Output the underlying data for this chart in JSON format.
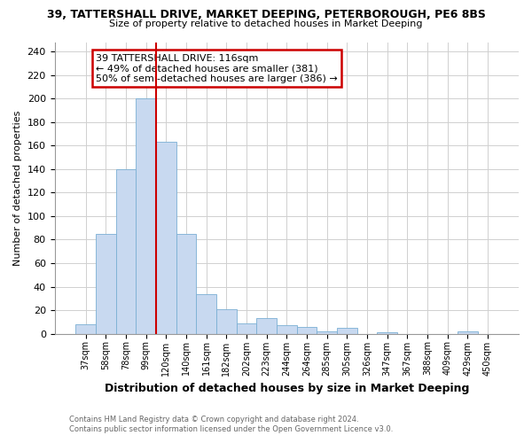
{
  "title1": "39, TATTERSHALL DRIVE, MARKET DEEPING, PETERBOROUGH, PE6 8BS",
  "title2": "Size of property relative to detached houses in Market Deeping",
  "xlabel": "Distribution of detached houses by size in Market Deeping",
  "ylabel": "Number of detached properties",
  "bar_labels": [
    "37sqm",
    "58sqm",
    "78sqm",
    "99sqm",
    "120sqm",
    "140sqm",
    "161sqm",
    "182sqm",
    "202sqm",
    "223sqm",
    "244sqm",
    "264sqm",
    "285sqm",
    "305sqm",
    "326sqm",
    "347sqm",
    "367sqm",
    "388sqm",
    "409sqm",
    "429sqm",
    "450sqm"
  ],
  "bar_values": [
    8,
    85,
    140,
    200,
    163,
    85,
    34,
    21,
    9,
    13,
    7,
    6,
    2,
    5,
    0,
    1,
    0,
    0,
    0,
    2,
    0
  ],
  "bar_color": "#c8d9f0",
  "bar_edgecolor": "#7aafd4",
  "vline_x_idx": 3.5,
  "vline_color": "#cc0000",
  "annotation_text": "39 TATTERSHALL DRIVE: 116sqm\n← 49% of detached houses are smaller (381)\n50% of semi-detached houses are larger (386) →",
  "annotation_box_edgecolor": "#cc0000",
  "ylim": [
    0,
    248
  ],
  "yticks": [
    0,
    20,
    40,
    60,
    80,
    100,
    120,
    140,
    160,
    180,
    200,
    220,
    240
  ],
  "footer1": "Contains HM Land Registry data © Crown copyright and database right 2024.",
  "footer2": "Contains public sector information licensed under the Open Government Licence v3.0.",
  "bg_color": "#ffffff",
  "grid_color": "#d0d0d0"
}
